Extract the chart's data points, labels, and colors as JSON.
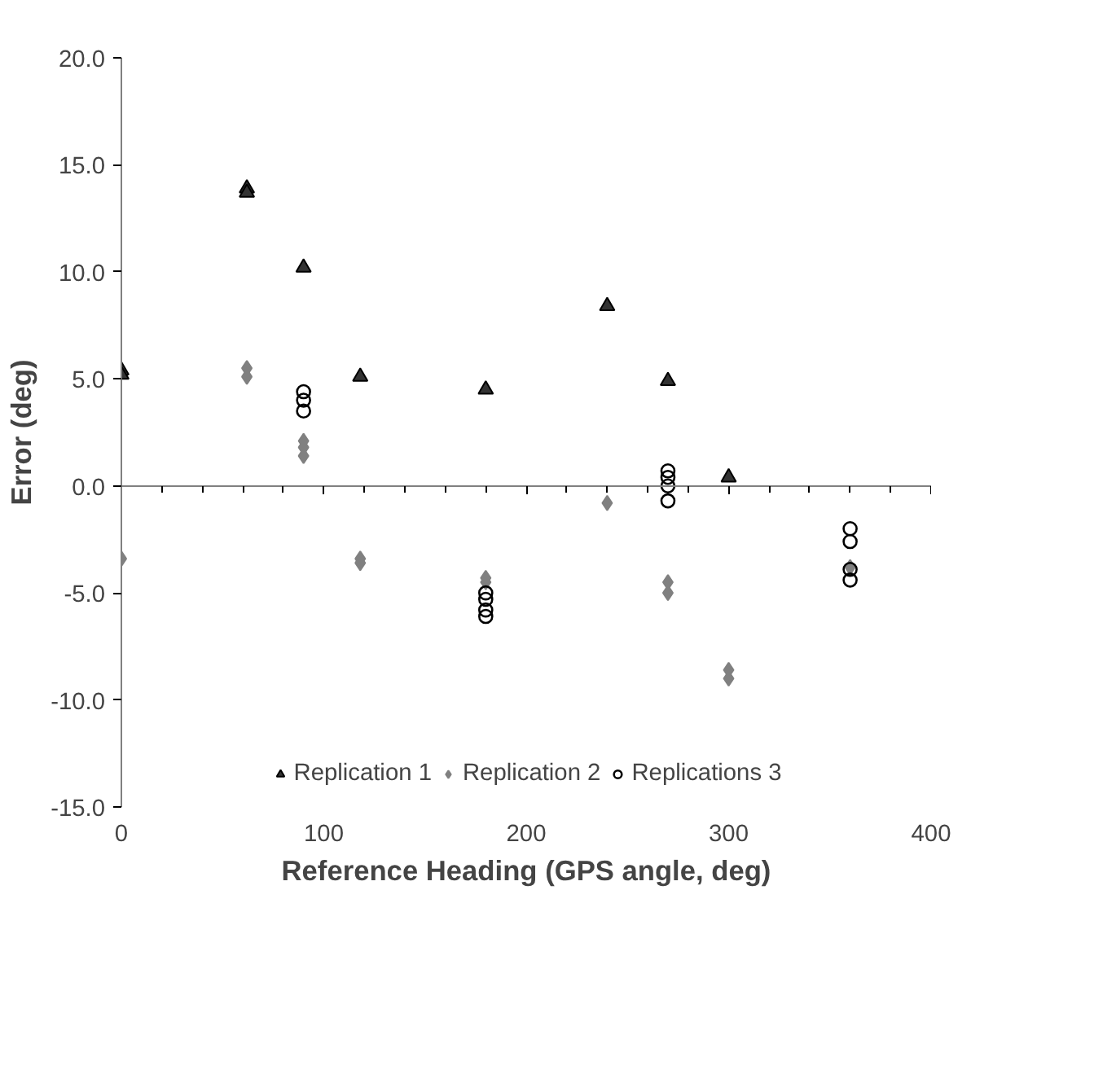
{
  "chart_data": {
    "type": "scatter",
    "xlabel": "Reference Heading (GPS angle, deg)",
    "ylabel": "Error (deg)",
    "xlim": [
      0,
      400
    ],
    "xticks": [
      0,
      100,
      200,
      300,
      400
    ],
    "ylim": [
      -15,
      20
    ],
    "yticks": [
      {
        "value": -15,
        "label": "-15.0"
      },
      {
        "value": -10,
        "label": "-10.0"
      },
      {
        "value": -5,
        "label": "-5.0"
      },
      {
        "value": 0,
        "label": "0.0"
      },
      {
        "value": 5,
        "label": "5.0"
      },
      {
        "value": 10,
        "label": "10.0"
      },
      {
        "value": 15,
        "label": "15.0"
      },
      {
        "value": 20,
        "label": "20.0"
      }
    ],
    "legend": "bottom",
    "series": [
      {
        "name": "Replication 1",
        "color": "#333333",
        "marker": "triangle",
        "x": [
          0,
          0,
          62,
          62,
          90,
          118,
          180,
          240,
          270,
          300
        ],
        "values": [
          5.4,
          5.2,
          13.9,
          13.7,
          10.2,
          5.1,
          4.5,
          8.4,
          4.9,
          0.4
        ]
      },
      {
        "name": "Replication 2",
        "color": "#808080",
        "marker": "diamond",
        "x": [
          0,
          62,
          62,
          90,
          90,
          90,
          118,
          118,
          180,
          180,
          240,
          270,
          270,
          300,
          300,
          360
        ],
        "values": [
          -3.4,
          5.5,
          5.1,
          2.1,
          1.8,
          1.4,
          -3.4,
          -3.6,
          -4.3,
          -4.5,
          -0.8,
          -4.5,
          -5.0,
          -8.6,
          -9.0,
          -3.8
        ]
      },
      {
        "name": "Replications 3",
        "color": "#000000",
        "marker": "circle",
        "x": [
          90,
          90,
          90,
          180,
          180,
          180,
          180,
          270,
          270,
          270,
          270,
          360,
          360,
          360,
          360
        ],
        "values": [
          4.4,
          4.0,
          3.5,
          -5.0,
          -5.3,
          -5.8,
          -6.1,
          0.7,
          0.4,
          0.0,
          -0.7,
          -2.0,
          -2.6,
          -3.9,
          -4.4
        ]
      }
    ]
  }
}
